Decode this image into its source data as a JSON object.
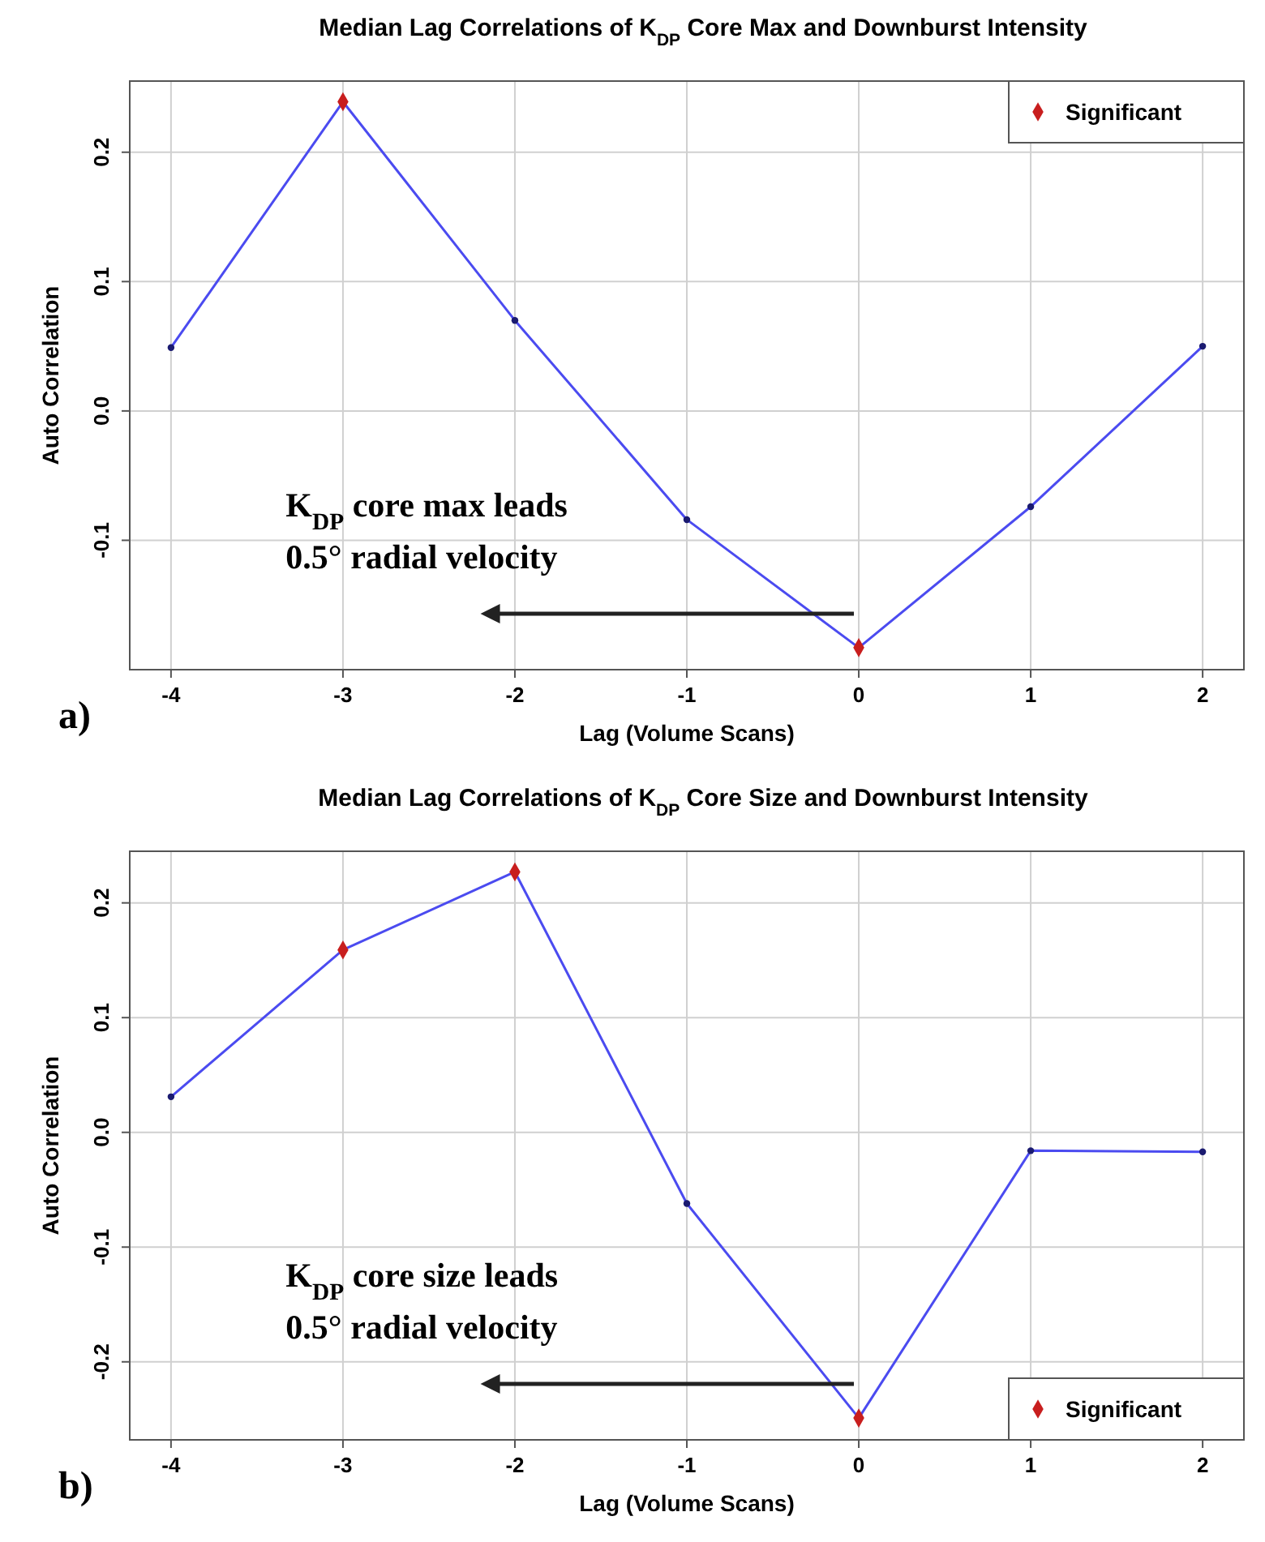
{
  "chart_data": [
    {
      "type": "line",
      "title": "Median Lag Correlations of K$_{DP}$ Core Max and Downburst Intensity",
      "xlabel": "Lag (Volume Scans)",
      "ylabel": "Auto Correlation",
      "x": [
        -4,
        -3,
        -2,
        -1,
        0,
        1,
        2
      ],
      "xlim": [
        -4.24,
        2.24
      ],
      "xticks": [
        -4,
        -3,
        -2,
        -1,
        0,
        1,
        2
      ],
      "ylim": [
        -0.2,
        0.255
      ],
      "yticks": [
        -0.1,
        {
          "value": 0,
          "label": "0.0"
        },
        0.1,
        0.2
      ],
      "grid": true,
      "legend": "top right",
      "annotations": [
        "K$_{DP}$ core max leads",
        "0.5° radial velocity",
        "a)"
      ],
      "series": [
        {
          "color": "#4b4bf0",
          "marker": "circle",
          "values": [
            0.049,
            0.239,
            0.07,
            -0.084,
            -0.183,
            -0.074,
            0.05
          ]
        },
        {
          "type": "scatter",
          "name": "Significant",
          "color": "#c81e1e",
          "marker": "diamond",
          "x": [
            -3,
            0
          ],
          "values": [
            0.239,
            -0.183
          ]
        }
      ]
    },
    {
      "type": "line",
      "title": "Median Lag Correlations of K$_{DP}$ Core Size and Downburst Intensity",
      "xlabel": "Lag (Volume Scans)",
      "ylabel": "Auto Correlation",
      "x": [
        -4,
        -3,
        -2,
        -1,
        0,
        1,
        2
      ],
      "xlim": [
        -4.24,
        2.24
      ],
      "xticks": [
        -4,
        -3,
        -2,
        -1,
        0,
        1,
        2
      ],
      "ylim": [
        -0.268,
        0.245
      ],
      "yticks": [
        -0.2,
        -0.1,
        {
          "value": 0,
          "label": "0.0"
        },
        0.1,
        0.2
      ],
      "grid": true,
      "legend": "bottom right",
      "annotations": [
        "K$_{DP}$ core size leads",
        "0.5° radial velocity",
        "b)"
      ],
      "series": [
        {
          "color": "#4b4bf0",
          "marker": "circle",
          "values": [
            0.031,
            0.159,
            0.227,
            -0.062,
            -0.249,
            -0.016,
            -0.017
          ]
        },
        {
          "type": "scatter",
          "name": "Significant",
          "color": "#c81e1e",
          "marker": "diamond",
          "x": [
            -3,
            -2,
            0
          ],
          "values": [
            0.159,
            0.227,
            -0.249
          ]
        }
      ]
    }
  ]
}
